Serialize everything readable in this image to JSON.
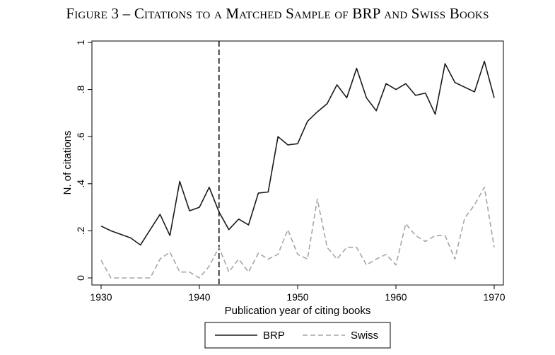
{
  "chart_data": {
    "type": "line",
    "title": "Figure 3 – Citations to a Matched Sample of BRP and Swiss Books",
    "xlabel": "Publication year of citing books",
    "ylabel": "N. of citations",
    "xlim": [
      1930,
      1970
    ],
    "ylim": [
      0,
      1
    ],
    "x_ticks": [
      1930,
      1940,
      1950,
      1960,
      1970
    ],
    "y_ticks": [
      0,
      0.2,
      0.4,
      0.6,
      0.8,
      1
    ],
    "y_tick_labels": [
      "0",
      ".2",
      ".4",
      ".6",
      ".8",
      "1"
    ],
    "reference_line_x": 1942,
    "legend_position": "bottom",
    "series": [
      {
        "name": "BRP",
        "color": "#1a1a1a",
        "style": "solid",
        "x": [
          1930,
          1931,
          1932,
          1933,
          1934,
          1935,
          1936,
          1937,
          1938,
          1939,
          1940,
          1941,
          1942,
          1943,
          1944,
          1945,
          1946,
          1947,
          1948,
          1949,
          1950,
          1951,
          1952,
          1953,
          1954,
          1955,
          1956,
          1957,
          1958,
          1959,
          1960,
          1961,
          1962,
          1963,
          1964,
          1965,
          1966,
          1967,
          1968,
          1969,
          1970
        ],
        "values": [
          0.22,
          0.2,
          0.185,
          0.17,
          0.14,
          0.205,
          0.27,
          0.18,
          0.41,
          0.285,
          0.3,
          0.385,
          0.28,
          0.205,
          0.25,
          0.225,
          0.36,
          0.365,
          0.6,
          0.565,
          0.57,
          0.665,
          0.705,
          0.74,
          0.82,
          0.765,
          0.89,
          0.765,
          0.71,
          0.825,
          0.8,
          0.825,
          0.775,
          0.785,
          0.695,
          0.91,
          0.83,
          0.81,
          0.79,
          0.92,
          0.765
        ]
      },
      {
        "name": "Swiss",
        "color": "#a6a6a6",
        "style": "dashed",
        "x": [
          1930,
          1931,
          1932,
          1933,
          1934,
          1935,
          1936,
          1937,
          1938,
          1939,
          1940,
          1941,
          1942,
          1943,
          1944,
          1945,
          1946,
          1947,
          1948,
          1949,
          1950,
          1951,
          1952,
          1953,
          1954,
          1955,
          1956,
          1957,
          1958,
          1959,
          1960,
          1961,
          1962,
          1963,
          1964,
          1965,
          1966,
          1967,
          1968,
          1969,
          1970
        ],
        "values": [
          0.075,
          0.0,
          0.0,
          0.0,
          0.0,
          0.0,
          0.08,
          0.11,
          0.025,
          0.025,
          0.0,
          0.05,
          0.13,
          0.025,
          0.08,
          0.025,
          0.105,
          0.08,
          0.1,
          0.205,
          0.1,
          0.08,
          0.335,
          0.13,
          0.08,
          0.13,
          0.13,
          0.055,
          0.08,
          0.1,
          0.055,
          0.23,
          0.18,
          0.155,
          0.18,
          0.18,
          0.08,
          0.255,
          0.31,
          0.385,
          0.13
        ]
      }
    ]
  }
}
